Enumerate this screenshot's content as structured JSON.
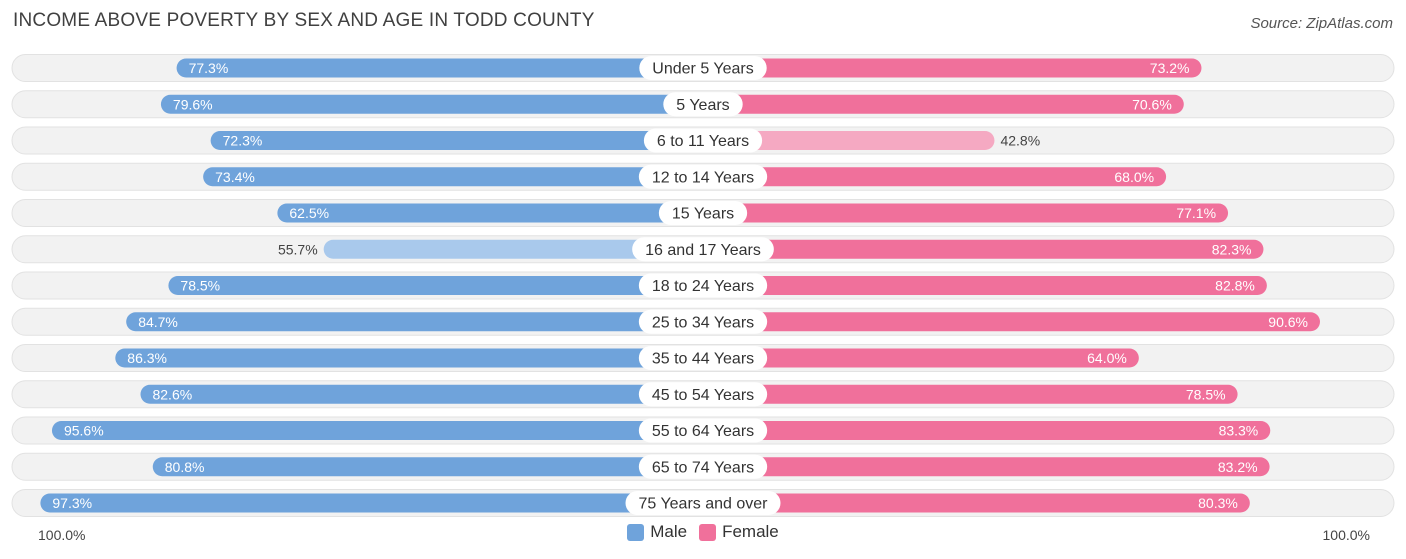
{
  "header": {
    "title": "INCOME ABOVE POVERTY BY SEX AND AGE IN TODD COUNTY",
    "source": "Source: ZipAtlas.com"
  },
  "legend": {
    "male_label": "Male",
    "female_label": "Female"
  },
  "axis": {
    "left_label": "100.0%",
    "right_label": "100.0%"
  },
  "colors": {
    "male_strong": "#6fa3db",
    "male_light": "#a9c9ec",
    "female_strong": "#f0709b",
    "female_light": "#f5a9c2",
    "row_bg": "#f2f2f2",
    "row_border": "#e2e2e2"
  },
  "chart_data": {
    "type": "bar",
    "title": "INCOME ABOVE POVERTY BY SEX AND AGE IN TODD COUNTY",
    "orientation": "diverging-horizontal",
    "xlim": [
      0,
      100
    ],
    "categories": [
      "Under 5 Years",
      "5 Years",
      "6 to 11 Years",
      "12 to 14 Years",
      "15 Years",
      "16 and 17 Years",
      "18 to 24 Years",
      "25 to 34 Years",
      "35 to 44 Years",
      "45 to 54 Years",
      "55 to 64 Years",
      "65 to 74 Years",
      "75 Years and over"
    ],
    "series": [
      {
        "name": "Male",
        "values": [
          77.3,
          79.6,
          72.3,
          73.4,
          62.5,
          55.7,
          78.5,
          84.7,
          86.3,
          82.6,
          95.6,
          80.8,
          97.3
        ]
      },
      {
        "name": "Female",
        "values": [
          73.2,
          70.6,
          42.8,
          68.0,
          77.1,
          82.3,
          82.8,
          90.6,
          64.0,
          78.5,
          83.3,
          83.2,
          80.3
        ]
      }
    ],
    "value_labels": {
      "male": [
        "77.3%",
        "79.6%",
        "72.3%",
        "73.4%",
        "62.5%",
        "55.7%",
        "78.5%",
        "84.7%",
        "86.3%",
        "82.6%",
        "95.6%",
        "80.8%",
        "97.3%"
      ],
      "female": [
        "73.2%",
        "70.6%",
        "42.8%",
        "68.0%",
        "77.1%",
        "82.3%",
        "82.8%",
        "90.6%",
        "64.0%",
        "78.5%",
        "83.3%",
        "83.2%",
        "80.3%"
      ]
    },
    "legend_position": "bottom-center"
  }
}
